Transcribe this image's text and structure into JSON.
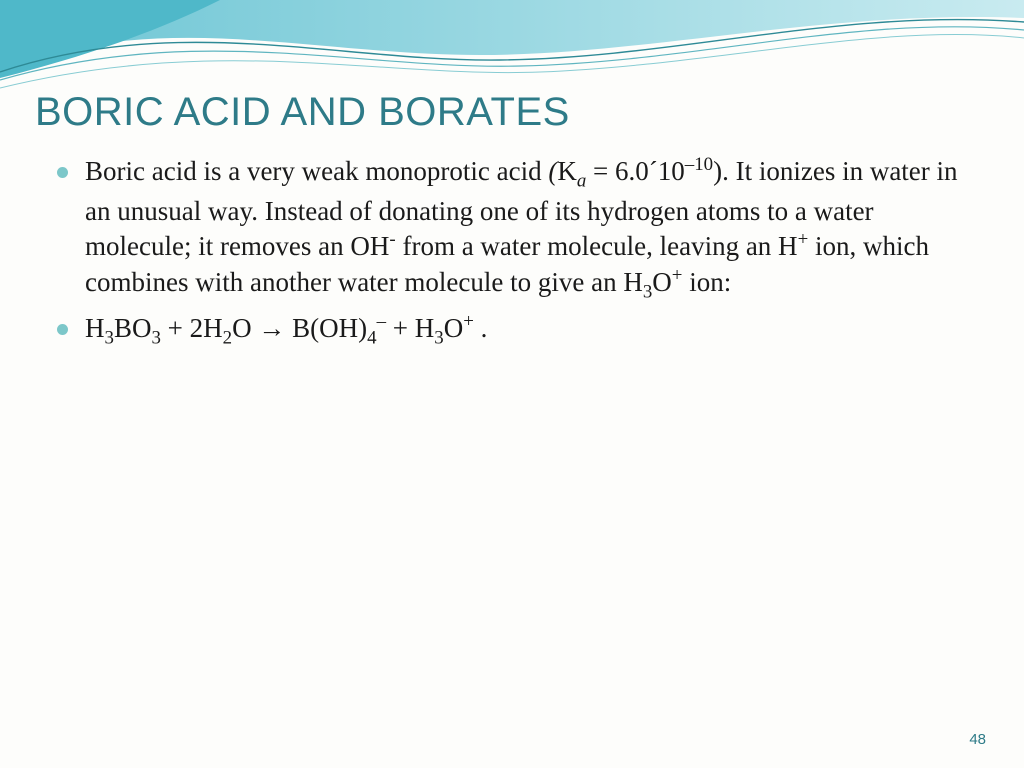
{
  "slide": {
    "title": "BORIC ACID AND BORATES",
    "title_color": "#2e7b88",
    "title_fontsize": 40,
    "bullet_color": "#7cc7c9",
    "body_color": "#1a1a1a",
    "body_fontsize": 27,
    "line_height": 1.28,
    "background_color": "#fdfdfb",
    "bullets": [
      {
        "segments": [
          {
            "t": "Boric acid is a very weak monoprotic acid "
          },
          {
            "t": "(",
            "ital": true
          },
          {
            "t": "K"
          },
          {
            "t": "a",
            "sub": true,
            "ital": true
          },
          {
            "t": " = 6.0´10"
          },
          {
            "t": "–10",
            "sup": true
          },
          {
            "t": "). It ionizes in water in an unusual way. Instead of donating one of its hydrogen atoms to a water molecule; it removes an OH"
          },
          {
            "t": "-",
            "sup": true
          },
          {
            "t": " from a water molecule, leaving an H"
          },
          {
            "t": "+",
            "sup": true
          },
          {
            "t": " ion, which combines with another water molecule to give an H"
          },
          {
            "t": "3",
            "sub": true
          },
          {
            "t": "O"
          },
          {
            "t": "+",
            "sup": true
          },
          {
            "t": " ion:"
          }
        ]
      },
      {
        "segments": [
          {
            "t": "H"
          },
          {
            "t": "3",
            "sub": true
          },
          {
            "t": "BO"
          },
          {
            "t": "3",
            "sub": true
          },
          {
            "t": " + 2H"
          },
          {
            "t": "2",
            "sub": true
          },
          {
            "t": "O → B(OH)"
          },
          {
            "t": "4",
            "sub": true
          },
          {
            "t": "–",
            "sup": true
          },
          {
            "t": " + H"
          },
          {
            "t": "3",
            "sub": true
          },
          {
            "t": "O"
          },
          {
            "t": "+",
            "sup": true
          },
          {
            "t": " ."
          }
        ]
      }
    ],
    "page_number": "48",
    "page_number_color": "#2e7b88",
    "page_number_fontsize": 15
  },
  "wave": {
    "fill_gradient_start": "#6cc5d4",
    "fill_gradient_end": "#c9ebf0",
    "corner_fill": "#4fb8c9",
    "line_color_1": "#2e8a96",
    "line_color_2": "#5fb5c0",
    "line_color_3": "#88ccd3"
  }
}
